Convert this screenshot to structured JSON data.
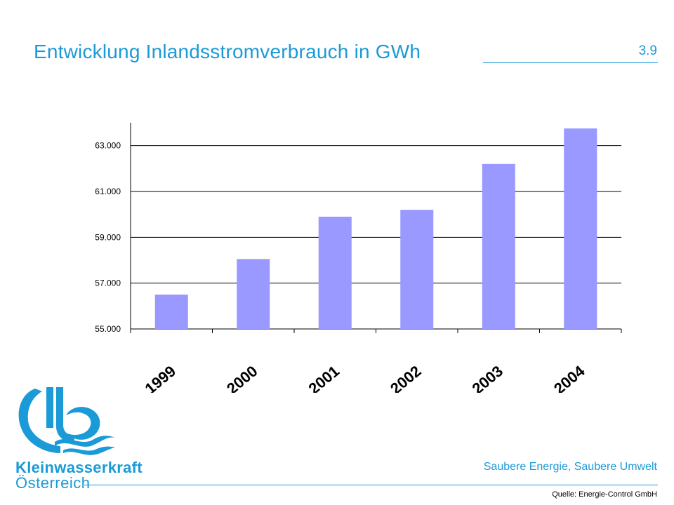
{
  "slide": {
    "title": "Entwicklung Inlandsstromverbrauch in GWh",
    "number": "3.9"
  },
  "footer": {
    "brand_name": "Kleinwasserkraft",
    "brand_sub": "Österreich",
    "tagline": "Saubere Energie, Saubere Umwelt",
    "source": "Quelle: Energie-Control GmbH"
  },
  "colors": {
    "accent": "#1a9ad6",
    "bar": "#9999ff"
  },
  "chart_data": {
    "type": "bar",
    "categories": [
      "1999",
      "2000",
      "2001",
      "2002",
      "2003",
      "2004"
    ],
    "values": [
      56500,
      58050,
      59900,
      60200,
      62200,
      63750
    ],
    "ylim": [
      55000,
      64000
    ],
    "yticks": [
      55000,
      57000,
      59000,
      61000,
      63000
    ],
    "ytick_labels": [
      "55.000",
      "57.000",
      "59.000",
      "61.000",
      "63.000"
    ],
    "grid": true,
    "title": "",
    "xlabel": "",
    "ylabel": ""
  }
}
